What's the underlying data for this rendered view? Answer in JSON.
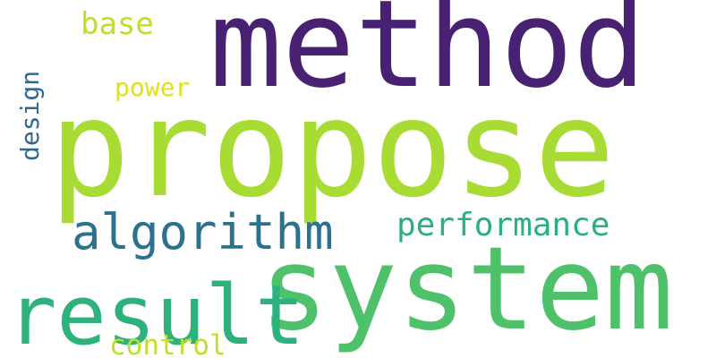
{
  "words": {
    "method": {
      "text": "method",
      "color": "#482173"
    },
    "propose": {
      "text": "propose",
      "color": "#a8db34"
    },
    "system": {
      "text": "system",
      "color": "#4fc16b"
    },
    "result": {
      "text": "result",
      "color": "#2db27d"
    },
    "algorithm": {
      "text": "algorithm",
      "color": "#2c728e"
    },
    "performance": {
      "text": "performance",
      "color": "#2ab07f"
    },
    "base": {
      "text": "base",
      "color": "#bddf26"
    },
    "power": {
      "text": "power",
      "color": "#dde318"
    },
    "design": {
      "text": "design",
      "color": "#31688e"
    },
    "control": {
      "text": "control",
      "color": "#c0df25"
    }
  }
}
